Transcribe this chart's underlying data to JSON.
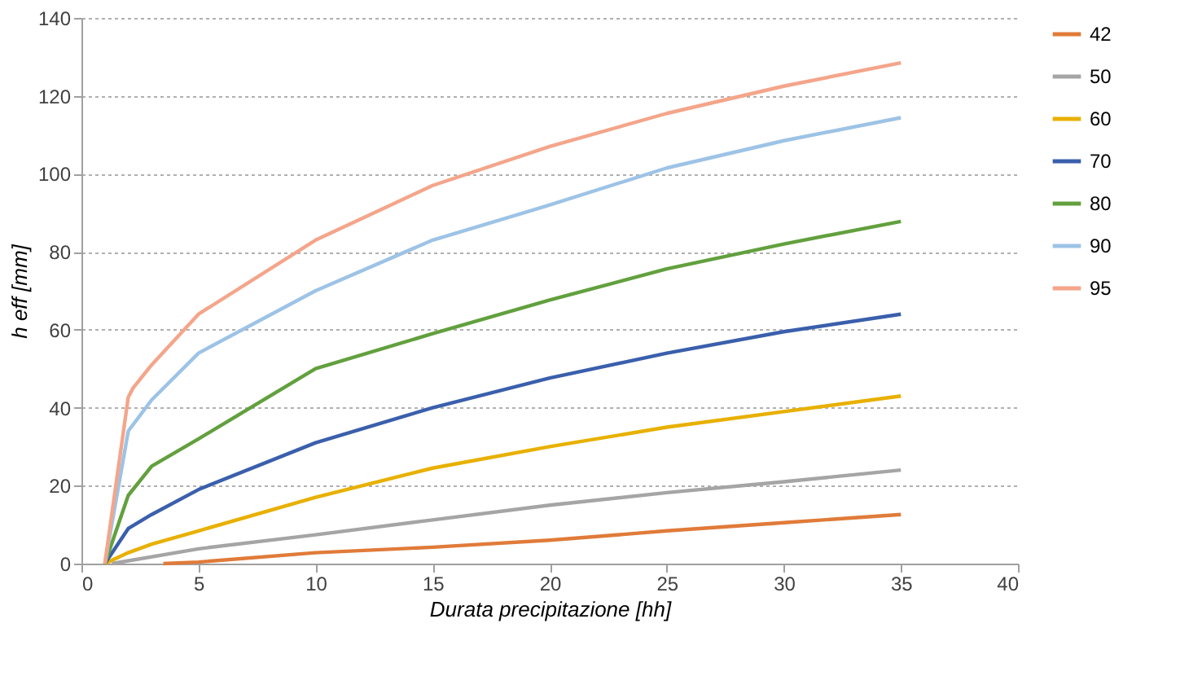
{
  "chart_data": {
    "type": "line",
    "xlabel": "Durata precipitazione [hh]",
    "ylabel": "h eff [mm]",
    "xlim": [
      0,
      40
    ],
    "xticks": [
      0,
      5,
      10,
      15,
      20,
      25,
      30,
      35,
      40
    ],
    "ylim": [
      0,
      140
    ],
    "yticks": [
      0,
      20,
      40,
      60,
      80,
      100,
      120,
      140
    ],
    "grid": "y",
    "legend": "right",
    "marker": "none",
    "line_style": "solid",
    "series": [
      {
        "name": "42",
        "color": "#e07b39",
        "x": [
          3.5,
          5,
          10,
          15,
          20,
          25,
          30,
          35
        ],
        "values": [
          0,
          0.4,
          2.8,
          4.2,
          6,
          8.4,
          10.5,
          12.6
        ]
      },
      {
        "name": "50",
        "color": "#a5a5a5",
        "x": [
          1.3,
          5,
          10,
          15,
          20,
          25,
          30,
          35
        ],
        "values": [
          0,
          3.8,
          7.4,
          11.2,
          15,
          18.2,
          21,
          24
        ]
      },
      {
        "name": "60",
        "color": "#e8b000",
        "x": [
          1,
          2,
          3,
          5,
          10,
          15,
          20,
          25,
          30,
          35
        ],
        "values": [
          0,
          2.8,
          5,
          8.4,
          17,
          24.5,
          30,
          35,
          39,
          43
        ]
      },
      {
        "name": "70",
        "color": "#3a5fac",
        "x": [
          1,
          2,
          3,
          5,
          10,
          15,
          20,
          25,
          30,
          35
        ],
        "values": [
          0,
          9,
          12.6,
          19,
          31,
          40,
          47.6,
          54,
          59.5,
          64
        ]
      },
      {
        "name": "80",
        "color": "#62a03e",
        "x": [
          1,
          2,
          3,
          5,
          10,
          15,
          20,
          25,
          30,
          35
        ],
        "values": [
          0,
          17.5,
          25,
          32,
          50,
          59,
          67.6,
          75.6,
          82,
          87.8
        ]
      },
      {
        "name": "90",
        "color": "#9dc3e6",
        "x": [
          1,
          2,
          3,
          5,
          10,
          15,
          20,
          25,
          30,
          35
        ],
        "values": [
          0,
          34,
          42,
          54,
          70,
          83,
          92,
          101.5,
          108.5,
          114.4
        ]
      },
      {
        "name": "95",
        "color": "#f4a58a",
        "x": [
          1,
          2,
          2.2,
          3,
          5,
          10,
          15,
          20,
          25,
          30,
          35
        ],
        "values": [
          0,
          42.7,
          45,
          51,
          64,
          83,
          97,
          107,
          115.5,
          122.5,
          128.5
        ]
      }
    ]
  }
}
